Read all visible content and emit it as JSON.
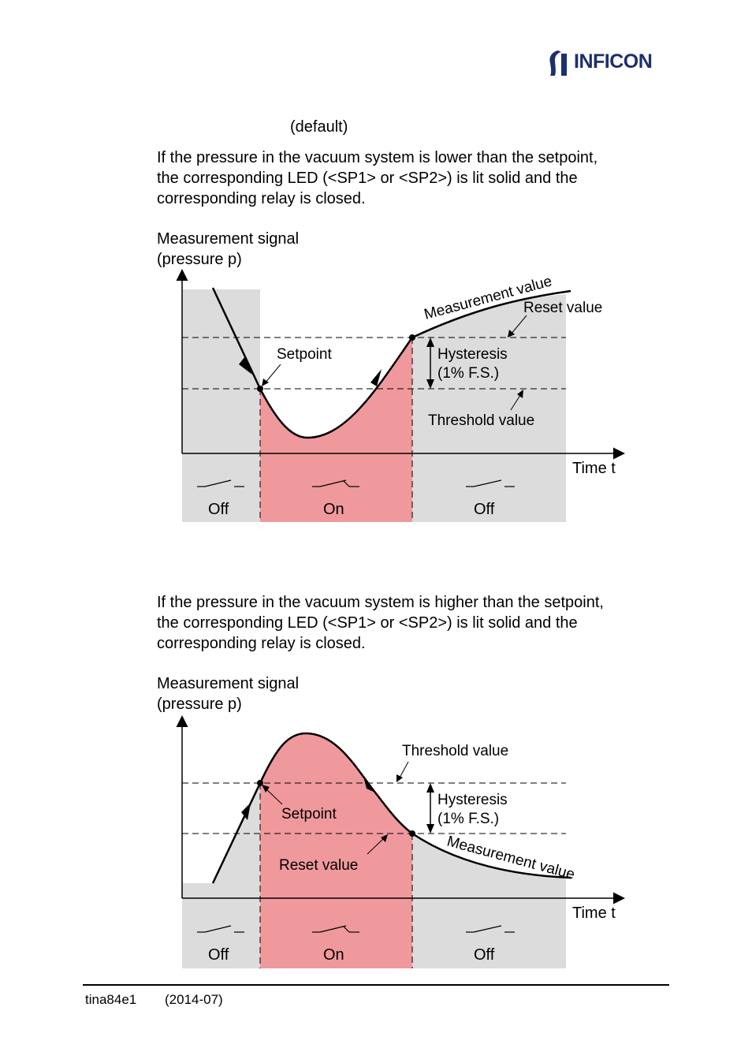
{
  "header": {
    "brand": "INFICON"
  },
  "default_label": "(default)",
  "section1": {
    "lines": [
      "If the pressure in the vacuum system is lower than the setpoint,",
      "the corresponding LED (<SP1> or <SP2>) is lit solid and the",
      "corresponding relay is closed."
    ],
    "diagram": {
      "ylabel_line1": "Measurement signal",
      "ylabel_line2": "(pressure p)",
      "xlabel": "Time t",
      "curve_label": "Measurement value",
      "reset_label": "Reset value",
      "setpoint_label": "Setpoint",
      "hysteresis_line1": "Hysteresis",
      "hysteresis_line2": "(1% F.S.)",
      "threshold_label": "Threshold value",
      "states": [
        "Off",
        "On",
        "Off"
      ]
    }
  },
  "section2": {
    "lines": [
      "If the pressure in the vacuum system is higher than the setpoint,",
      "the corresponding LED (<SP1> or <SP2>) is lit solid and the",
      "corresponding relay is closed."
    ],
    "diagram": {
      "ylabel_line1": "Measurement signal",
      "ylabel_line2": "(pressure p)",
      "xlabel": "Time t",
      "threshold_label": "Threshold value",
      "hysteresis_line1": "Hysteresis",
      "hysteresis_line2": "(1% F.S.)",
      "setpoint_label": "Setpoint",
      "reset_label": "Reset value",
      "curve_label": "Measurement value",
      "states": [
        "Off",
        "On",
        "Off"
      ]
    }
  },
  "colors": {
    "grey_region": "#dcdcdc",
    "on_region": "#f0999d",
    "brand": "#1c2f6e"
  },
  "footer": {
    "doc_id": "tina84e1",
    "date": "(2014-07)"
  }
}
